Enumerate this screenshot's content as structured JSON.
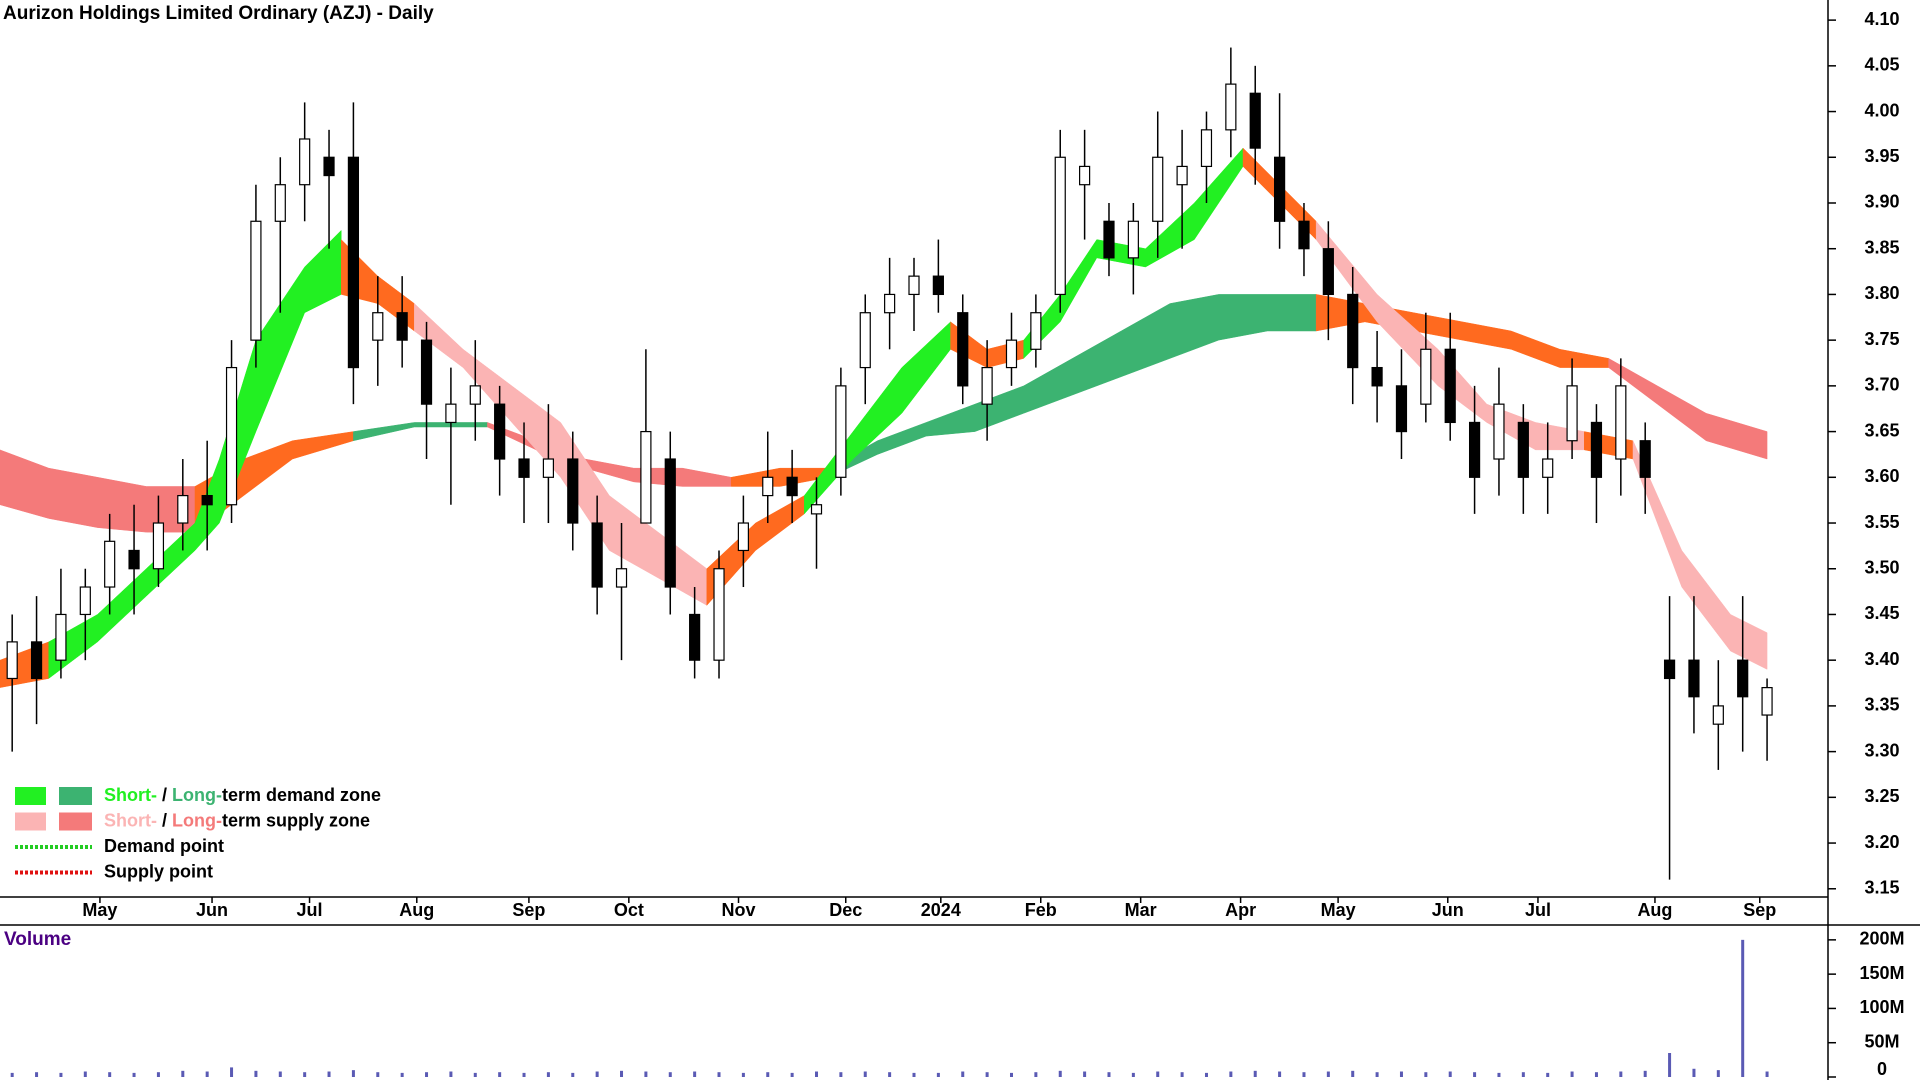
{
  "chart_data": {
    "type": "candlestick",
    "title": "Aurizon Holdings Limited Ordinary (AZJ) - Daily",
    "x": [
      0.5,
      1.5,
      2.5,
      3.5,
      4.5,
      5.5,
      6.5,
      7.5,
      8.5,
      9.5,
      10.5,
      11.5,
      12.5,
      13.5,
      14.5,
      15.5,
      16.5,
      17.5,
      18.5,
      19.5,
      20.5,
      21.5,
      22.5,
      23.5,
      24.5,
      25.5,
      26.5,
      27.5,
      28.5,
      29.5,
      30.5,
      31.5,
      32.5,
      33.5,
      34.5,
      35.5,
      36.5,
      37.5,
      38.5,
      39.5,
      40.5,
      41.5,
      42.5,
      43.5,
      44.5,
      45.5,
      46.5,
      47.5,
      48.5,
      49.5,
      50.5,
      51.5,
      52.5,
      53.5,
      54.5,
      55.5,
      56.5,
      57.5,
      58.5,
      59.5,
      60.5,
      61.5,
      62.5,
      63.5,
      64.5,
      65.5,
      66.5,
      67.5,
      68.5,
      69.5,
      70.5,
      71.5,
      72.5
    ],
    "open": [
      3.38,
      3.42,
      3.4,
      3.45,
      3.48,
      3.52,
      3.5,
      3.55,
      3.58,
      3.57,
      3.75,
      3.88,
      3.92,
      3.95,
      3.95,
      3.75,
      3.78,
      3.75,
      3.66,
      3.68,
      3.68,
      3.62,
      3.6,
      3.62,
      3.55,
      3.48,
      3.55,
      3.62,
      3.45,
      3.4,
      3.52,
      3.58,
      3.6,
      3.56,
      3.6,
      3.72,
      3.78,
      3.8,
      3.82,
      3.78,
      3.68,
      3.72,
      3.74,
      3.8,
      3.92,
      3.88,
      3.84,
      3.88,
      3.92,
      3.94,
      3.98,
      4.02,
      3.95,
      3.88,
      3.85,
      3.8,
      3.72,
      3.7,
      3.68,
      3.74,
      3.66,
      3.62,
      3.66,
      3.6,
      3.64,
      3.66,
      3.62,
      3.64,
      3.4,
      3.4,
      3.33,
      3.4,
      3.34
    ],
    "high": [
      3.45,
      3.47,
      3.5,
      3.5,
      3.56,
      3.57,
      3.58,
      3.62,
      3.64,
      3.75,
      3.92,
      3.95,
      4.01,
      3.98,
      4.01,
      3.82,
      3.82,
      3.77,
      3.72,
      3.75,
      3.7,
      3.66,
      3.68,
      3.65,
      3.58,
      3.55,
      3.74,
      3.65,
      3.48,
      3.52,
      3.58,
      3.65,
      3.63,
      3.6,
      3.72,
      3.8,
      3.84,
      3.84,
      3.86,
      3.8,
      3.75,
      3.78,
      3.8,
      3.98,
      3.98,
      3.9,
      3.9,
      4.0,
      3.98,
      4.0,
      4.07,
      4.05,
      4.02,
      3.9,
      3.88,
      3.83,
      3.76,
      3.74,
      3.78,
      3.78,
      3.7,
      3.72,
      3.68,
      3.66,
      3.73,
      3.68,
      3.73,
      3.66,
      3.47,
      3.47,
      3.4,
      3.47,
      3.38
    ],
    "low": [
      3.3,
      3.33,
      3.38,
      3.4,
      3.45,
      3.45,
      3.48,
      3.52,
      3.52,
      3.55,
      3.72,
      3.78,
      3.88,
      3.85,
      3.68,
      3.7,
      3.72,
      3.62,
      3.57,
      3.64,
      3.58,
      3.55,
      3.55,
      3.52,
      3.45,
      3.4,
      3.55,
      3.45,
      3.38,
      3.38,
      3.48,
      3.55,
      3.55,
      3.5,
      3.58,
      3.68,
      3.74,
      3.76,
      3.78,
      3.68,
      3.64,
      3.7,
      3.72,
      3.78,
      3.86,
      3.82,
      3.8,
      3.84,
      3.85,
      3.9,
      3.95,
      3.92,
      3.85,
      3.82,
      3.75,
      3.68,
      3.66,
      3.62,
      3.66,
      3.64,
      3.56,
      3.58,
      3.56,
      3.56,
      3.62,
      3.55,
      3.58,
      3.56,
      3.16,
      3.32,
      3.28,
      3.3,
      3.29
    ],
    "close": [
      3.42,
      3.38,
      3.45,
      3.48,
      3.53,
      3.5,
      3.55,
      3.58,
      3.57,
      3.72,
      3.88,
      3.92,
      3.97,
      3.93,
      3.72,
      3.78,
      3.75,
      3.68,
      3.68,
      3.7,
      3.62,
      3.6,
      3.62,
      3.55,
      3.48,
      3.5,
      3.65,
      3.48,
      3.4,
      3.5,
      3.55,
      3.6,
      3.58,
      3.57,
      3.7,
      3.78,
      3.8,
      3.82,
      3.8,
      3.7,
      3.72,
      3.75,
      3.78,
      3.95,
      3.94,
      3.84,
      3.88,
      3.95,
      3.94,
      3.98,
      4.03,
      3.96,
      3.88,
      3.85,
      3.8,
      3.72,
      3.7,
      3.65,
      3.74,
      3.66,
      3.6,
      3.68,
      3.6,
      3.62,
      3.7,
      3.6,
      3.7,
      3.6,
      3.38,
      3.36,
      3.35,
      3.36,
      3.37
    ],
    "xlim": [
      0,
      75
    ],
    "xticks": [
      {
        "value": 4.1,
        "label": "May"
      },
      {
        "value": 8.7,
        "label": "Jun"
      },
      {
        "value": 12.7,
        "label": "Jul"
      },
      {
        "value": 17.1,
        "label": "Aug"
      },
      {
        "value": 21.7,
        "label": "Sep"
      },
      {
        "value": 25.8,
        "label": "Oct"
      },
      {
        "value": 30.3,
        "label": "Nov"
      },
      {
        "value": 34.7,
        "label": "Dec"
      },
      {
        "value": 38.6,
        "label": "2024"
      },
      {
        "value": 42.7,
        "label": "Feb"
      },
      {
        "value": 46.8,
        "label": "Mar"
      },
      {
        "value": 50.9,
        "label": "Apr"
      },
      {
        "value": 54.9,
        "label": "May"
      },
      {
        "value": 59.4,
        "label": "Jun"
      },
      {
        "value": 63.1,
        "label": "Jul"
      },
      {
        "value": 67.9,
        "label": "Aug"
      },
      {
        "value": 72.2,
        "label": "Sep"
      }
    ],
    "ylim": [
      3.141,
      4.122
    ],
    "yticks": [
      {
        "value": 4.1,
        "label": "4.10"
      },
      4.05,
      {
        "value": 4.0,
        "label": "4.00"
      },
      3.95,
      {
        "value": 3.9,
        "label": "3.90"
      },
      3.85,
      {
        "value": 3.8,
        "label": "3.80"
      },
      3.75,
      {
        "value": 3.7,
        "label": "3.70"
      },
      3.65,
      {
        "value": 3.6,
        "label": "3.60"
      },
      3.55,
      {
        "value": 3.5,
        "label": "3.50"
      },
      3.45,
      {
        "value": 3.4,
        "label": "3.40"
      },
      3.35,
      {
        "value": 3.3,
        "label": "3.30"
      },
      3.25,
      {
        "value": 3.2,
        "label": "3.20"
      },
      3.15
    ],
    "zones": [
      {
        "color": "#f47a7a",
        "x": [
          0,
          2,
          4,
          6,
          8
        ],
        "upper": [
          3.63,
          3.61,
          3.6,
          3.59,
          3.59
        ],
        "lower": [
          3.57,
          3.555,
          3.545,
          3.54,
          3.54
        ]
      },
      {
        "color": "#ff6a1f",
        "x": [
          8,
          10,
          12,
          14.5
        ],
        "upper": [
          3.59,
          3.62,
          3.64,
          3.65
        ],
        "lower": [
          3.54,
          3.58,
          3.62,
          3.64
        ]
      },
      {
        "color": "#3cb371",
        "x": [
          14.5,
          17,
          20
        ],
        "upper": [
          3.65,
          3.66,
          3.66
        ],
        "lower": [
          3.64,
          3.655,
          3.655
        ]
      },
      {
        "color": "#f47a7a",
        "x": [
          20,
          22,
          24,
          26,
          28,
          30
        ],
        "upper": [
          3.66,
          3.64,
          3.62,
          3.61,
          3.61,
          3.6
        ],
        "lower": [
          3.655,
          3.63,
          3.61,
          3.595,
          3.59,
          3.59
        ]
      },
      {
        "color": "#ff6a1f",
        "x": [
          30,
          32,
          34
        ],
        "upper": [
          3.6,
          3.61,
          3.61
        ],
        "lower": [
          3.59,
          3.59,
          3.6
        ]
      },
      {
        "color": "#3cb371",
        "x": [
          34,
          36,
          38,
          40,
          42,
          44,
          46,
          48,
          50,
          52,
          54
        ],
        "upper": [
          3.61,
          3.64,
          3.66,
          3.68,
          3.7,
          3.73,
          3.76,
          3.79,
          3.8,
          3.8,
          3.8
        ],
        "lower": [
          3.6,
          3.625,
          3.645,
          3.65,
          3.67,
          3.69,
          3.71,
          3.73,
          3.75,
          3.76,
          3.76
        ]
      },
      {
        "color": "#ff6a1f",
        "x": [
          54,
          56,
          58,
          60,
          62,
          64,
          66
        ],
        "upper": [
          3.8,
          3.79,
          3.78,
          3.77,
          3.76,
          3.74,
          3.73
        ],
        "lower": [
          3.76,
          3.77,
          3.76,
          3.75,
          3.74,
          3.72,
          3.72
        ]
      },
      {
        "color": "#f47a7a",
        "x": [
          66,
          68,
          70,
          72.5
        ],
        "upper": [
          3.73,
          3.7,
          3.67,
          3.65
        ],
        "lower": [
          3.72,
          3.68,
          3.64,
          3.62
        ]
      },
      {
        "color": "#ff6a1f",
        "x": [
          0,
          2
        ],
        "upper": [
          3.4,
          3.42
        ],
        "lower": [
          3.37,
          3.38
        ]
      },
      {
        "color": "#22f022",
        "x": [
          2,
          4,
          6,
          8,
          9,
          10.5,
          12.5,
          14
        ],
        "upper": [
          3.42,
          3.45,
          3.5,
          3.55,
          3.62,
          3.75,
          3.83,
          3.87
        ],
        "lower": [
          3.38,
          3.42,
          3.47,
          3.52,
          3.55,
          3.65,
          3.78,
          3.8
        ]
      },
      {
        "color": "#ff6a1f",
        "x": [
          14,
          15.5,
          17
        ],
        "upper": [
          3.86,
          3.82,
          3.79
        ],
        "lower": [
          3.8,
          3.79,
          3.76
        ]
      },
      {
        "color": "#fbb4b4",
        "x": [
          17,
          19,
          21,
          23,
          25,
          29
        ],
        "upper": [
          3.79,
          3.74,
          3.7,
          3.66,
          3.58,
          3.5
        ],
        "lower": [
          3.76,
          3.72,
          3.66,
          3.6,
          3.52,
          3.46
        ]
      },
      {
        "color": "#ff6a1f",
        "x": [
          29,
          31,
          33
        ],
        "upper": [
          3.5,
          3.55,
          3.58
        ],
        "lower": [
          3.46,
          3.52,
          3.56
        ]
      },
      {
        "color": "#22f022",
        "x": [
          33,
          35,
          37,
          39
        ],
        "upper": [
          3.58,
          3.65,
          3.72,
          3.77
        ],
        "lower": [
          3.56,
          3.62,
          3.67,
          3.74
        ]
      },
      {
        "color": "#ff6a1f",
        "x": [
          39,
          40.5,
          42
        ],
        "upper": [
          3.77,
          3.74,
          3.75
        ],
        "lower": [
          3.74,
          3.72,
          3.73
        ]
      },
      {
        "color": "#22f022",
        "x": [
          42,
          43.5,
          45,
          47,
          49,
          51
        ],
        "upper": [
          3.75,
          3.8,
          3.86,
          3.85,
          3.9,
          3.96
        ],
        "lower": [
          3.73,
          3.77,
          3.84,
          3.83,
          3.86,
          3.94
        ]
      },
      {
        "color": "#ff6a1f",
        "x": [
          51,
          52.5,
          54
        ],
        "upper": [
          3.96,
          3.92,
          3.88
        ],
        "lower": [
          3.94,
          3.9,
          3.86
        ]
      },
      {
        "color": "#fbb4b4",
        "x": [
          54,
          56.5,
          59,
          61,
          63,
          65
        ],
        "upper": [
          3.88,
          3.8,
          3.74,
          3.68,
          3.66,
          3.65
        ],
        "lower": [
          3.86,
          3.77,
          3.7,
          3.66,
          3.63,
          3.63
        ]
      },
      {
        "color": "#ff6a1f",
        "x": [
          65,
          67
        ],
        "upper": [
          3.65,
          3.64
        ],
        "lower": [
          3.63,
          3.62
        ]
      },
      {
        "color": "#fbb4b4",
        "x": [
          67,
          69,
          71,
          72.5
        ],
        "upper": [
          3.64,
          3.52,
          3.45,
          3.43
        ],
        "lower": [
          3.62,
          3.48,
          3.41,
          3.39
        ]
      }
    ],
    "legend": [
      {
        "swatches": [
          "#22f022",
          "#3cb371"
        ],
        "parts": [
          {
            "text": "Short-",
            "color": "#22f022"
          },
          {
            "text": " / "
          },
          {
            "text": "Long-",
            "color": "#3cb371"
          },
          {
            "text": "term demand zone"
          }
        ]
      },
      {
        "swatches": [
          "#fbb4b4",
          "#f47a7a"
        ],
        "parts": [
          {
            "text": "Short-",
            "color": "#fbb4b4"
          },
          {
            "text": " / "
          },
          {
            "text": "Long-",
            "color": "#f47a7a"
          },
          {
            "text": "term supply zone"
          }
        ]
      },
      {
        "line": "#22cc22",
        "parts": [
          {
            "text": "Demand point"
          }
        ]
      },
      {
        "line": "#e01010",
        "parts": [
          {
            "text": "Supply point"
          }
        ]
      }
    ],
    "volume": {
      "type": "bar",
      "title": "Volume",
      "color": "#5a5ab4",
      "values": [
        6000000,
        7000000,
        6000000,
        8000000,
        7000000,
        6000000,
        7000000,
        9000000,
        8000000,
        14000000,
        9000000,
        8000000,
        7000000,
        8000000,
        10000000,
        7000000,
        6000000,
        7000000,
        8000000,
        6000000,
        7000000,
        6000000,
        7000000,
        6000000,
        8000000,
        9000000,
        8000000,
        7000000,
        8000000,
        7000000,
        6000000,
        7000000,
        6000000,
        8000000,
        7000000,
        8000000,
        7000000,
        6000000,
        6000000,
        8000000,
        7000000,
        6000000,
        7000000,
        9000000,
        8000000,
        7000000,
        6000000,
        8000000,
        7000000,
        6000000,
        8000000,
        9000000,
        8000000,
        7000000,
        8000000,
        9000000,
        7000000,
        8000000,
        7000000,
        8000000,
        7000000,
        6000000,
        7000000,
        6000000,
        8000000,
        7000000,
        8000000,
        9000000,
        35000000,
        12000000,
        10000000,
        200000000,
        8000000
      ],
      "ylim": [
        0,
        210000000
      ],
      "yticks": [
        {
          "value": 200000000,
          "label": "200M"
        },
        {
          "value": 150000000,
          "label": "150M"
        },
        {
          "value": 100000000,
          "label": "100M"
        },
        {
          "value": 50000000,
          "label": "50M"
        },
        0
      ]
    }
  }
}
